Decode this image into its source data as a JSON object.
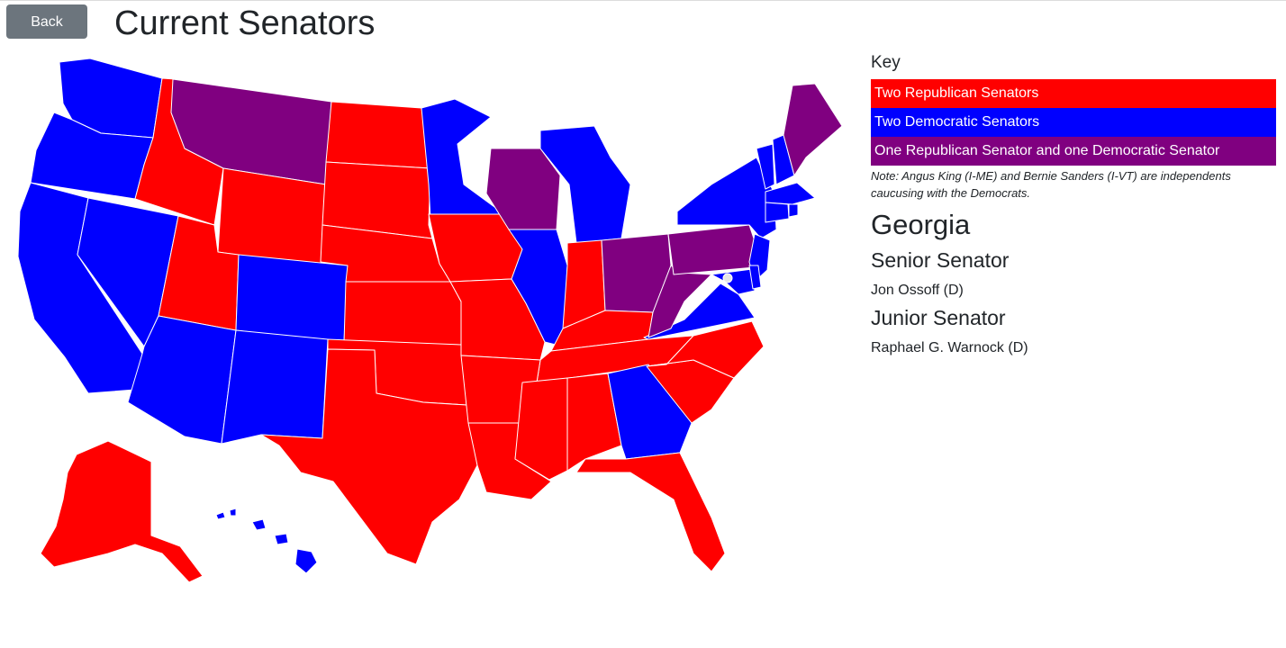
{
  "header": {
    "back_label": "Back",
    "title": "Current Senators"
  },
  "key": {
    "heading": "Key",
    "items": [
      {
        "label": "Two Republican Senators",
        "color": "#ff0000"
      },
      {
        "label": "Two Democratic Senators",
        "color": "#0000ff"
      },
      {
        "label": "One Republican Senator and one Democratic Senator",
        "color": "#800080"
      }
    ],
    "note": "Note: Angus King (I-ME) and Bernie Sanders (I-VT) are independents caucusing with the Democrats."
  },
  "selected_state": {
    "name": "Georgia",
    "senior_heading": "Senior Senator",
    "senior_name": "Jon Ossoff (D)",
    "junior_heading": "Junior Senator",
    "junior_name": "Raphael G. Warnock (D)"
  }
}
